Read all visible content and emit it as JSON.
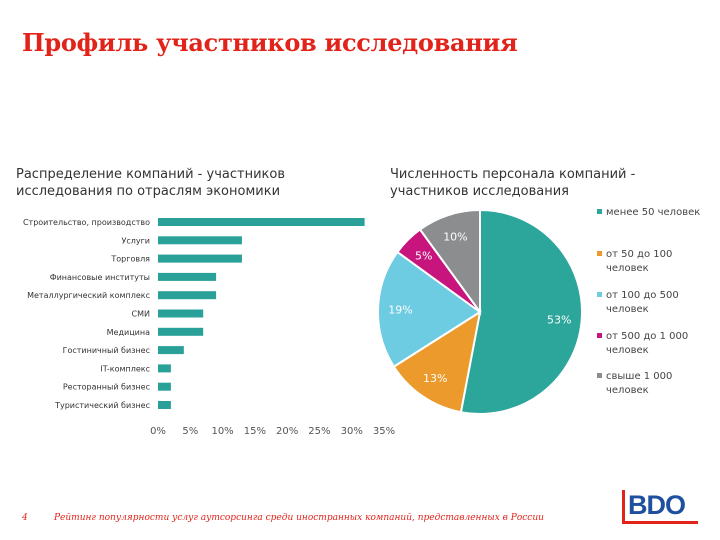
{
  "page": {
    "title": "Профиль участников исследования",
    "slide_number": "4",
    "footer": "Рейтинг популярности услуг аутсорсинга среди иностранных компаний, представленных в России",
    "logo_text": "BDO",
    "brand_color": "#e2231a",
    "logo_color": "#1f4f9f"
  },
  "chart_data": [
    {
      "type": "bar",
      "orientation": "horizontal",
      "title": "Распределение компаний - участников исследования по отраслям экономики",
      "categories": [
        "Строительство, производство",
        "Услуги",
        "Торговля",
        "Финансовые институты",
        "Металлургический комплекс",
        "СМИ",
        "Медицина",
        "Гостиничный бизнес",
        "IT-комплекс",
        "Ресторанный бизнес",
        "Туристический бизнес"
      ],
      "values": [
        32,
        13,
        13,
        9,
        9,
        7,
        7,
        4,
        2,
        2,
        2
      ],
      "xlim": [
        0,
        35
      ],
      "xticks": [
        "0%",
        "5%",
        "10%",
        "15%",
        "20%",
        "25%",
        "30%",
        "35%"
      ],
      "color": "#2aa198",
      "grid": false
    },
    {
      "type": "pie",
      "title": "Численность персонала компаний - участников исследования",
      "slices": [
        {
          "label": "менее 50 человек",
          "value": 53,
          "text": "53%",
          "color": "#2ca59a"
        },
        {
          "label": "от 50 до 100 человек",
          "value": 13,
          "text": "13%",
          "color": "#ec9a2c"
        },
        {
          "label": "от 100 до 500 человек",
          "value": 19,
          "text": "19%",
          "color": "#6dcbe2"
        },
        {
          "label": "от 500 до 1 000 человек",
          "value": 5,
          "text": "5%",
          "color": "#c8157d"
        },
        {
          "label": "свыше 1 000 человек",
          "value": 10,
          "text": "10%",
          "color": "#8c8d8f"
        }
      ],
      "legend_position": "right"
    }
  ]
}
